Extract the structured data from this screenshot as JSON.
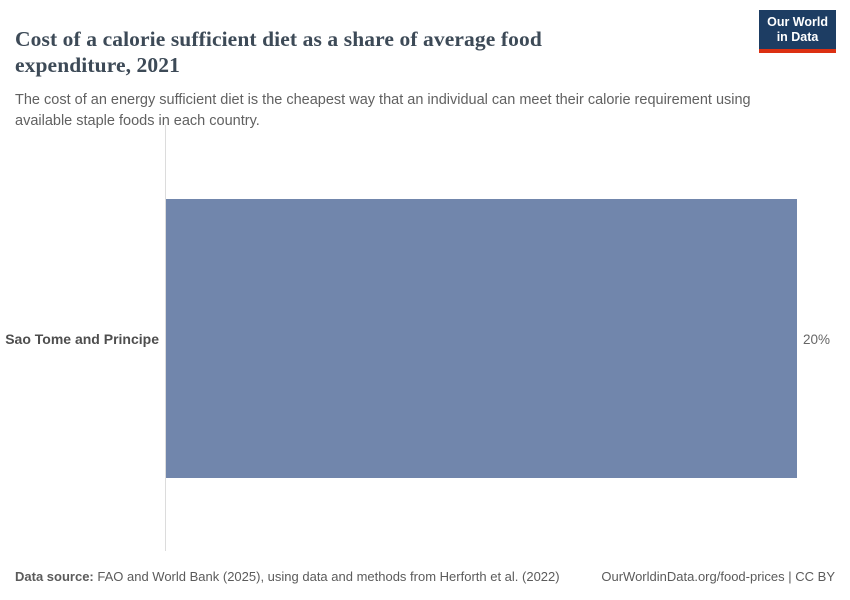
{
  "header": {
    "title": "Cost of a calorie sufficient diet as a share of average food expenditure, 2021",
    "subtitle": "The cost of an energy sufficient diet is the cheapest way that an individual can meet their calorie requirement using available staple foods in each country.",
    "logo_line1": "Our World",
    "logo_line2": "in Data"
  },
  "chart_data": {
    "type": "bar",
    "orientation": "horizontal",
    "title": "Cost of a calorie sufficient diet as a share of average food expenditure, 2021",
    "categories": [
      "Sao Tome and Principe"
    ],
    "values": [
      20
    ],
    "value_labels": [
      "20%"
    ],
    "unit": "%",
    "xlabel": "",
    "ylabel": "",
    "xlim": [
      0,
      20
    ],
    "grid": false,
    "legend": "none",
    "bar_color": "#7186ac"
  },
  "footer": {
    "source_label": "Data source:",
    "source_text": "FAO and World Bank (2025), using data and methods from Herforth et al. (2022)",
    "link": "OurWorldinData.org/food-prices | CC BY"
  },
  "colors": {
    "bar": "#7186ac",
    "logo_bg": "#1d3d63",
    "logo_accent": "#dc3012",
    "axis_line": "#dcdcdc",
    "title_text": "#3d4a57"
  }
}
